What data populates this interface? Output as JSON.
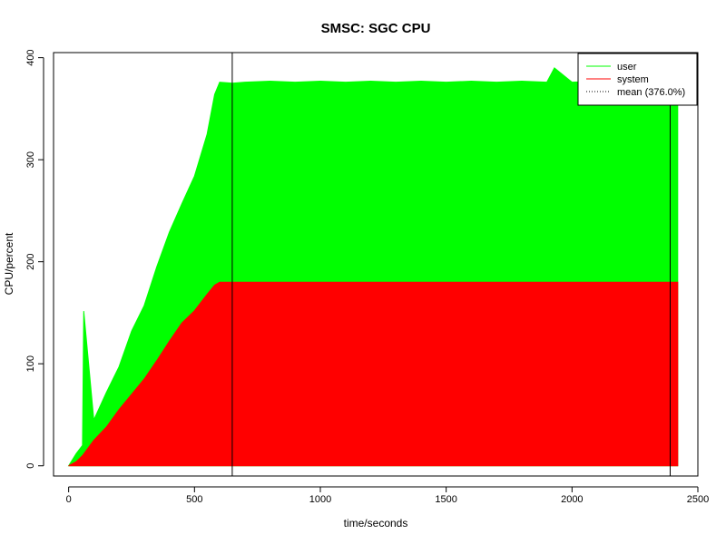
{
  "chart_data": {
    "type": "area",
    "title": "SMSC: SGC CPU",
    "xlabel": "time/seconds",
    "ylabel": "CPU/percent",
    "xlim": [
      -60,
      2500
    ],
    "ylim": [
      -10,
      405
    ],
    "x_ticks": [
      0,
      500,
      1000,
      1500,
      2000,
      2500
    ],
    "y_ticks": [
      0,
      100,
      200,
      300,
      400
    ],
    "grid": false,
    "legend_position": "top-right",
    "stacked": true,
    "series": [
      {
        "name": "user",
        "color": "#00ff00",
        "x": [
          0,
          30,
          55,
          60,
          100,
          150,
          200,
          250,
          300,
          350,
          400,
          450,
          500,
          550,
          580,
          600,
          650,
          700,
          800,
          900,
          1000,
          1100,
          1200,
          1300,
          1400,
          1500,
          1600,
          1700,
          1800,
          1900,
          1930,
          2000,
          2100,
          2200,
          2300,
          2400,
          2420
        ],
        "values": [
          0,
          8,
          10,
          140,
          20,
          34,
          42,
          62,
          72,
          92,
          107,
          117,
          132,
          157,
          187,
          196,
          195,
          196,
          197,
          196,
          197,
          196,
          197,
          196,
          197,
          196,
          197,
          196,
          197,
          196,
          210,
          196,
          197,
          196,
          197,
          196,
          196
        ]
      },
      {
        "name": "system",
        "color": "#ff0000",
        "x": [
          0,
          30,
          55,
          100,
          150,
          200,
          250,
          300,
          350,
          400,
          450,
          500,
          550,
          580,
          600,
          650,
          700,
          800,
          900,
          1000,
          1100,
          1200,
          1300,
          1400,
          1500,
          1600,
          1700,
          1800,
          1900,
          2000,
          2100,
          2200,
          2300,
          2400,
          2420
        ],
        "values": [
          0,
          4,
          10,
          25,
          38,
          55,
          70,
          85,
          103,
          122,
          140,
          152,
          168,
          177,
          180,
          180,
          180,
          180,
          180,
          180,
          180,
          180,
          180,
          180,
          180,
          180,
          180,
          180,
          180,
          180,
          180,
          180,
          180,
          180,
          180
        ]
      }
    ],
    "mean": {
      "name": "mean (376.0%)",
      "value": 376.0,
      "style": "dotted",
      "color": "#000000"
    },
    "vlines": [
      650,
      2390
    ]
  }
}
